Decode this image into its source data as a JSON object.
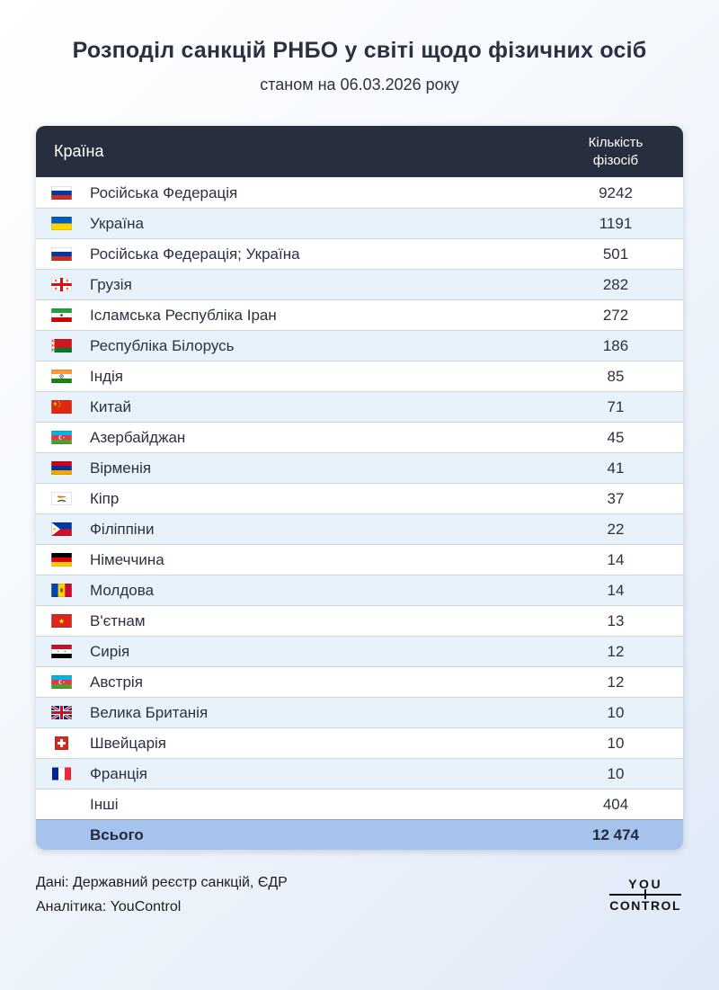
{
  "header": {
    "title": "Розподіл санкцій РНБО у світі щодо фізичних осіб",
    "subtitle": "станом на 06.03.2026 року"
  },
  "table": {
    "col_country": "Країна",
    "col_count": "Кількість фізосіб",
    "rows": [
      {
        "flag": "ru",
        "country": "Російська Федерація",
        "count": "9242"
      },
      {
        "flag": "ua",
        "country": "Україна",
        "count": "1191"
      },
      {
        "flag": "ru",
        "country": "Російська Федерація; Україна",
        "count": "501"
      },
      {
        "flag": "ge",
        "country": "Грузія",
        "count": "282"
      },
      {
        "flag": "ir",
        "country": "Ісламська Республіка Іран",
        "count": "272"
      },
      {
        "flag": "by",
        "country": "Республіка Білорусь",
        "count": "186"
      },
      {
        "flag": "in",
        "country": "Індія",
        "count": "85"
      },
      {
        "flag": "cn",
        "country": "Китай",
        "count": "71"
      },
      {
        "flag": "az",
        "country": "Азербайджан",
        "count": "45"
      },
      {
        "flag": "am",
        "country": "Вірменія",
        "count": "41"
      },
      {
        "flag": "cy",
        "country": "Кіпр",
        "count": "37"
      },
      {
        "flag": "ph",
        "country": "Філіппіни",
        "count": "22"
      },
      {
        "flag": "de",
        "country": "Німеччина",
        "count": "14"
      },
      {
        "flag": "md",
        "country": "Молдова",
        "count": "14"
      },
      {
        "flag": "vn",
        "country": "В'єтнам",
        "count": "13"
      },
      {
        "flag": "sy",
        "country": "Сирія",
        "count": "12"
      },
      {
        "flag": "az",
        "country": "Австрія",
        "count": "12"
      },
      {
        "flag": "gb",
        "country": "Велика Британія",
        "count": "10"
      },
      {
        "flag": "ch",
        "country": "Швейцарія",
        "count": "10"
      },
      {
        "flag": "fr",
        "country": "Франція",
        "count": "10"
      },
      {
        "flag": null,
        "country": "Інші",
        "count": "404"
      }
    ],
    "total": {
      "label": "Всього",
      "count": "12 474"
    }
  },
  "footer": {
    "source": "Дані: Державний реєстр санкцій, ЄДР",
    "analytics": "Аналітика: YouControl",
    "logo_top": "YOU",
    "logo_bottom": "CONTROL"
  },
  "colors": {
    "header_bg": "#272e3d",
    "row_alt_bg": "#e7f2fb",
    "total_bg": "#a6c3ee",
    "text": "#2b3140"
  },
  "chart_data": {
    "type": "table",
    "title": "Розподіл санкцій РНБО у світі щодо фізичних осіб",
    "subtitle": "станом на 06.03.2026 року",
    "columns": [
      "Країна",
      "Кількість фізосіб"
    ],
    "categories": [
      "Російська Федерація",
      "Україна",
      "Російська Федерація; Україна",
      "Грузія",
      "Ісламська Республіка Іран",
      "Республіка Білорусь",
      "Індія",
      "Китай",
      "Азербайджан",
      "Вірменія",
      "Кіпр",
      "Філіппіни",
      "Німеччина",
      "Молдова",
      "В'єтнам",
      "Сирія",
      "Австрія",
      "Велика Британія",
      "Швейцарія",
      "Франція",
      "Інші"
    ],
    "values": [
      9242,
      1191,
      501,
      282,
      272,
      186,
      85,
      71,
      45,
      41,
      37,
      22,
      14,
      14,
      13,
      12,
      12,
      10,
      10,
      10,
      404
    ],
    "total": 12474
  }
}
